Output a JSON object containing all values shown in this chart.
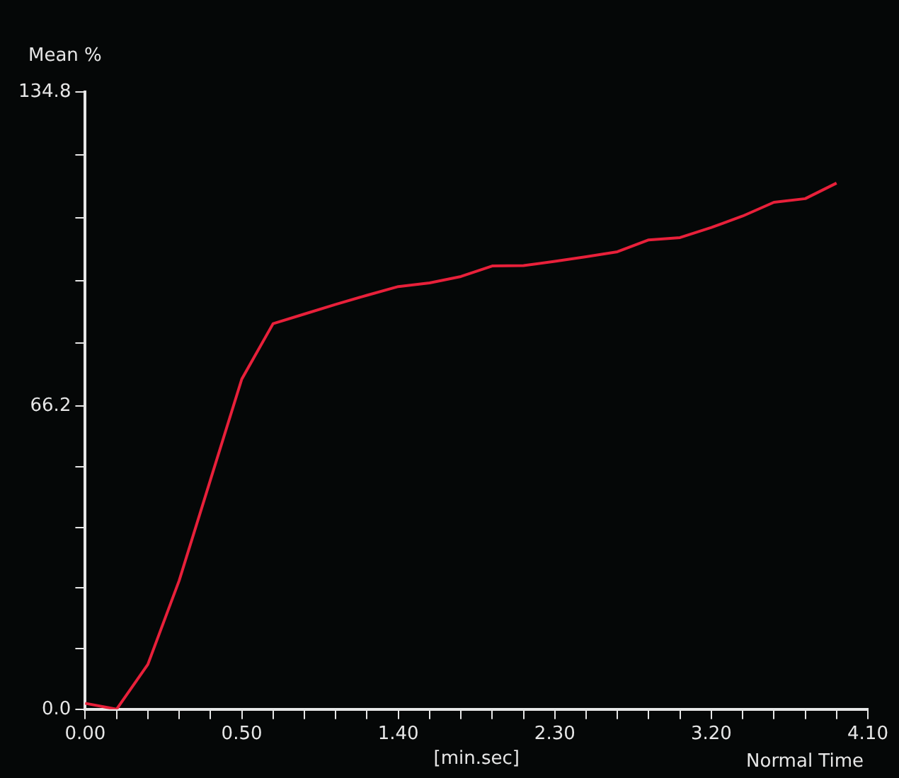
{
  "chart_data": {
    "type": "line",
    "xlabel": "[min.sec]",
    "ylabel": "Mean %",
    "annotations": [
      "Normal Time"
    ],
    "categories": [
      "0.00",
      null,
      null,
      null,
      null,
      "0.50",
      null,
      null,
      null,
      null,
      "1.40",
      null,
      null,
      null,
      null,
      "2.30",
      null,
      null,
      null,
      null,
      "3.20",
      null,
      null,
      null,
      null,
      "4.10"
    ],
    "ylim": [
      0,
      134.8
    ],
    "yticks": [
      {
        "value": 0,
        "label": "0.0"
      },
      {
        "value": 13.24,
        "label": null
      },
      {
        "value": 26.48,
        "label": null
      },
      {
        "value": 39.72,
        "label": null
      },
      {
        "value": 52.96,
        "label": null
      },
      66.2,
      {
        "value": 79.92,
        "label": null
      },
      {
        "value": 93.64,
        "label": null
      },
      {
        "value": 107.36,
        "label": null
      },
      {
        "value": 121.08,
        "label": null
      },
      134.8
    ],
    "grid": false,
    "legend": false,
    "marker": "none",
    "line_style": "solid",
    "series": [
      {
        "color": "#e8203a",
        "values": [
          1.3,
          0,
          9.8,
          28.1,
          50.1,
          72.1,
          84.2,
          86.3,
          88.4,
          90.4,
          92.3,
          93.1,
          94.5,
          96.8,
          96.9,
          97.8,
          98.8,
          99.9,
          102.5,
          103,
          105.2,
          107.7,
          110.7,
          111.5,
          114.9,
          null
        ]
      }
    ]
  }
}
